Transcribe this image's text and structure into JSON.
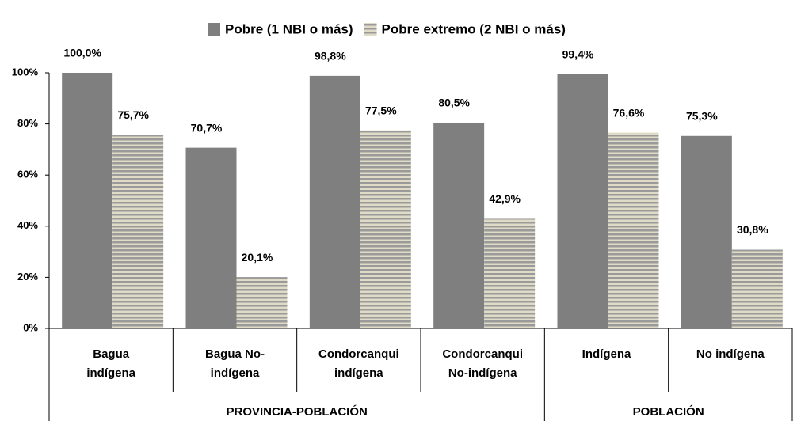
{
  "chart_data": {
    "type": "bar",
    "legend": "top",
    "groups": [
      {
        "label": "PROVINCIA-POBLACIÓN",
        "categories": [
          [
            "Bagua",
            "indígena"
          ],
          [
            "Bagua No-",
            "indígena"
          ],
          [
            "Condorcanqui",
            "indígena"
          ],
          [
            "Condorcanqui",
            "No-indígena"
          ]
        ]
      },
      {
        "label": "POBLACIÓN",
        "categories": [
          [
            "Indígena"
          ],
          [
            "No indígena"
          ]
        ]
      }
    ],
    "series": [
      {
        "name": "Pobre (1 NBI o más)",
        "color": "#7f7f7f",
        "values": [
          100.0,
          70.7,
          98.8,
          80.5,
          99.4,
          75.3
        ],
        "value_labels": [
          "100,0%",
          "70,7%",
          "98,8%",
          "80,5%",
          "99,4%",
          "75,3%"
        ]
      },
      {
        "name": "Pobre extremo (2 NBI o más)",
        "color": "#9a9a9a",
        "stripe_color": "#e0dbc6",
        "values": [
          75.7,
          20.1,
          77.5,
          42.9,
          76.6,
          30.8
        ],
        "value_labels": [
          "75,7%",
          "20,1%",
          "77,5%",
          "42,9%",
          "76,6%",
          "30,8%"
        ]
      }
    ],
    "ylim": [
      0,
      100
    ],
    "yticks": [
      {
        "value": 0,
        "label": "0%"
      },
      {
        "value": 20,
        "label": "20%"
      },
      {
        "value": 40,
        "label": "40%"
      },
      {
        "value": 60,
        "label": "60%"
      },
      {
        "value": 80,
        "label": "80%"
      },
      {
        "value": 100,
        "label": "100%"
      }
    ]
  }
}
